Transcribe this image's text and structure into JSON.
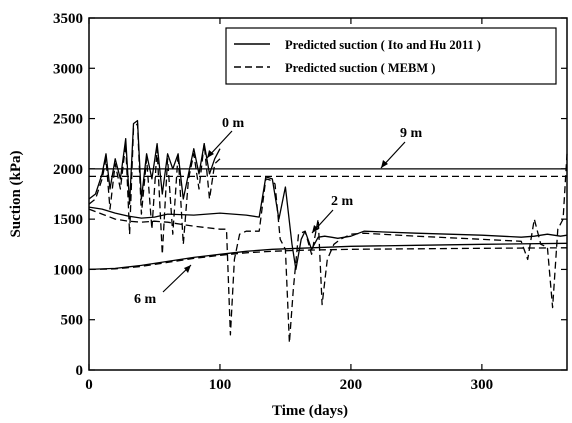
{
  "chart_data": {
    "type": "line",
    "xlabel": "Time (days)",
    "ylabel": "Suction (kPa)",
    "xlim": [
      0,
      365
    ],
    "ylim": [
      0,
      3500
    ],
    "xticks": [
      0,
      100,
      200,
      300
    ],
    "yticks": [
      0,
      500,
      1000,
      1500,
      2000,
      2500,
      3000,
      3500
    ],
    "grid": false,
    "legend_position": "top-right",
    "legend": [
      {
        "label": "Predicted suction ( Ito and Hu 2011 )",
        "style": "solid"
      },
      {
        "label": "Predicted suction ( MEBM )",
        "style": "dashed"
      }
    ],
    "annotations": [
      {
        "text": "0 m",
        "points_to": [
          92,
          2000
        ]
      },
      {
        "text": "9 m",
        "points_to": [
          245,
          2000
        ]
      },
      {
        "text": "2 m",
        "points_to": [
          160,
          1390
        ]
      },
      {
        "text": "6 m",
        "points_to": [
          74,
          1120
        ]
      }
    ],
    "series": [
      {
        "depth": "0 m",
        "style": "solid",
        "x": [
          0,
          5,
          10,
          13,
          16,
          20,
          24,
          28,
          31,
          34,
          37,
          40,
          44,
          48,
          52,
          56,
          60,
          64,
          68,
          72,
          76,
          80,
          84,
          88,
          92,
          96,
          100
        ],
        "y": [
          1700,
          1750,
          1950,
          2150,
          1800,
          2100,
          1900,
          2300,
          1650,
          2450,
          2480,
          1700,
          2150,
          1900,
          2250,
          1750,
          2150,
          2000,
          2150,
          1700,
          1950,
          2200,
          1950,
          2250,
          1950,
          2100,
          2200
        ]
      },
      {
        "depth": "0 m",
        "style": "dashed",
        "x": [
          0,
          5,
          10,
          13,
          16,
          20,
          24,
          28,
          31,
          34,
          37,
          40,
          44,
          48,
          52,
          56,
          60,
          64,
          68,
          72,
          76,
          80,
          84,
          88,
          92,
          96,
          100
        ],
        "y": [
          1650,
          1700,
          1900,
          2100,
          1600,
          2050,
          1800,
          2250,
          1350,
          2400,
          2450,
          1550,
          2100,
          1400,
          2200,
          1150,
          2100,
          1350,
          2150,
          1250,
          1900,
          2150,
          1800,
          2250,
          1700,
          2050,
          2100
        ]
      },
      {
        "depth": "9 m",
        "style": "solid",
        "x": [
          0,
          365
        ],
        "y": [
          2000,
          2000
        ]
      },
      {
        "depth": "9 m",
        "style": "dashed",
        "x": [
          0,
          365
        ],
        "y": [
          1925,
          1925
        ]
      },
      {
        "depth": "2 m",
        "style": "solid",
        "x": [
          0,
          10,
          20,
          30,
          40,
          50,
          60,
          80,
          100,
          110,
          120,
          130,
          135,
          140,
          145,
          150,
          155,
          158,
          162,
          165,
          170,
          175,
          180,
          185,
          190,
          200,
          210,
          250,
          300,
          330,
          340,
          350,
          360,
          365
        ],
        "y": [
          1620,
          1600,
          1560,
          1530,
          1510,
          1520,
          1550,
          1540,
          1560,
          1550,
          1540,
          1520,
          1920,
          1900,
          1500,
          1820,
          1250,
          1000,
          1300,
          1380,
          1200,
          1320,
          1330,
          1320,
          1310,
          1330,
          1380,
          1360,
          1340,
          1320,
          1330,
          1350,
          1330,
          1340
        ]
      },
      {
        "depth": "2 m",
        "style": "dashed",
        "x": [
          0,
          10,
          20,
          30,
          40,
          50,
          60,
          80,
          100,
          105,
          108,
          111,
          115,
          120,
          130,
          135,
          138,
          142,
          146,
          150,
          153,
          156,
          160,
          165,
          170,
          175,
          178,
          182,
          187,
          192,
          200,
          210,
          250,
          300,
          330,
          335,
          340,
          345,
          350,
          354,
          358,
          362,
          365
        ],
        "y": [
          1600,
          1550,
          1500,
          1480,
          1470,
          1480,
          1470,
          1430,
          1400,
          1400,
          350,
          1100,
          1350,
          1380,
          1380,
          1900,
          1890,
          1850,
          1300,
          1200,
          270,
          800,
          1350,
          1380,
          1150,
          1500,
          650,
          1100,
          1250,
          1300,
          1350,
          1360,
          1330,
          1300,
          1280,
          1100,
          1500,
          1250,
          1220,
          620,
          1400,
          1500,
          2150
        ]
      },
      {
        "depth": "6 m",
        "style": "solid",
        "x": [
          0,
          20,
          40,
          60,
          80,
          100,
          120,
          140,
          160,
          180,
          200,
          250,
          300,
          365
        ],
        "y": [
          1000,
          1010,
          1040,
          1080,
          1120,
          1150,
          1180,
          1200,
          1210,
          1220,
          1230,
          1240,
          1250,
          1260
        ]
      },
      {
        "depth": "6 m",
        "style": "dashed",
        "x": [
          0,
          20,
          40,
          60,
          80,
          100,
          120,
          140,
          160,
          180,
          200,
          250,
          300,
          365
        ],
        "y": [
          1000,
          1005,
          1030,
          1070,
          1110,
          1140,
          1165,
          1180,
          1190,
          1195,
          1200,
          1205,
          1210,
          1215
        ]
      }
    ]
  }
}
